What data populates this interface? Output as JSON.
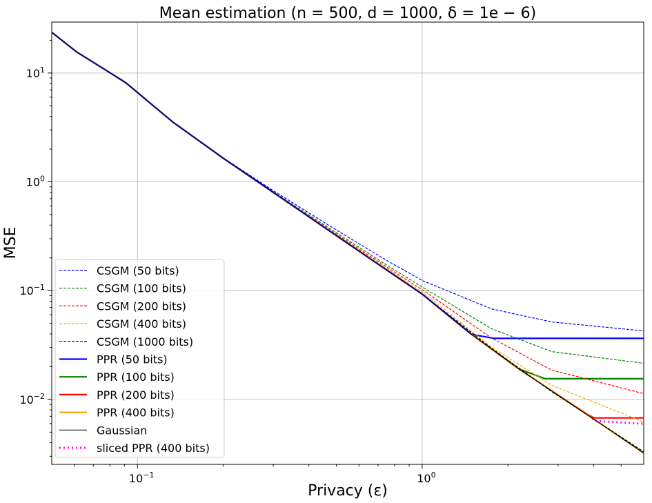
{
  "chart_data": {
    "type": "line",
    "title": "Mean estimation (n = 500, d = 1000, δ = 1e − 6)",
    "xlabel": "Privacy (ε)",
    "ylabel": "MSE",
    "xscale": "log",
    "yscale": "log",
    "xlim": [
      0.05,
      6
    ],
    "ylim": [
      0.00253,
      29.4
    ],
    "grid": true,
    "legend_position": "lower-left",
    "xticks": [
      {
        "value": 0.1,
        "label": "10",
        "exp": "−1"
      },
      {
        "value": 1,
        "label": "10",
        "exp": "0"
      }
    ],
    "yticks": [
      {
        "value": 10,
        "label": "10",
        "exp": "1"
      },
      {
        "value": 1,
        "label": "10",
        "exp": "0"
      },
      {
        "value": 0.1,
        "label": "10",
        "exp": "−1"
      },
      {
        "value": 0.01,
        "label": "10",
        "exp": "−2"
      }
    ],
    "series": [
      {
        "name": "CSGM (50 bits)",
        "color": "#0000ff",
        "style": "dashed",
        "x": [
          0.05,
          0.061,
          0.075,
          0.091,
          0.133,
          0.2,
          0.3,
          0.5,
          0.75,
          1,
          1.75,
          2.85,
          6
        ],
        "y": [
          23.7,
          15.7,
          11.2,
          8.15,
          3.55,
          1.66,
          0.83,
          0.36,
          0.19,
          0.124,
          0.068,
          0.0515,
          0.0426
        ]
      },
      {
        "name": "CSGM (100 bits)",
        "color": "#008000",
        "style": "dashed",
        "x": [
          0.05,
          0.061,
          0.075,
          0.091,
          0.133,
          0.2,
          0.3,
          0.5,
          0.75,
          1,
          1.75,
          2.85,
          6
        ],
        "y": [
          23.7,
          15.7,
          11.2,
          8.15,
          3.55,
          1.65,
          0.81,
          0.34,
          0.172,
          0.108,
          0.0447,
          0.0275,
          0.0215
        ]
      },
      {
        "name": "CSGM (200 bits)",
        "color": "#ff0000",
        "style": "dashed",
        "x": [
          0.05,
          0.061,
          0.075,
          0.091,
          0.133,
          0.2,
          0.3,
          0.5,
          0.75,
          1,
          1.75,
          2.85,
          6
        ],
        "y": [
          23.7,
          15.7,
          11.2,
          8.15,
          3.55,
          1.65,
          0.8,
          0.33,
          0.165,
          0.102,
          0.0368,
          0.0186,
          0.0113
        ]
      },
      {
        "name": "CSGM (400 bits)",
        "color": "#ffa500",
        "style": "dashed",
        "x": [
          0.05,
          0.061,
          0.075,
          0.091,
          0.133,
          0.2,
          0.3,
          0.5,
          0.75,
          1,
          1.75,
          2.85,
          6
        ],
        "y": [
          23.7,
          15.7,
          11.2,
          8.15,
          3.55,
          1.65,
          0.8,
          0.325,
          0.16,
          0.097,
          0.0303,
          0.0135,
          0.0062
        ]
      },
      {
        "name": "CSGM (1000 bits)",
        "color": "#000000",
        "style": "dashed",
        "x": [
          0.05,
          0.061,
          0.075,
          0.091,
          0.133,
          0.2,
          0.3,
          0.5,
          0.75,
          1,
          1.75,
          2.85,
          6
        ],
        "y": [
          23.7,
          15.7,
          11.2,
          8.15,
          3.55,
          1.65,
          0.8,
          0.32,
          0.155,
          0.093,
          0.0296,
          0.0118,
          0.0033
        ]
      },
      {
        "name": "PPR (50 bits)",
        "color": "#0000ff",
        "style": "solid",
        "x": [
          0.05,
          0.061,
          0.075,
          0.091,
          0.133,
          0.2,
          0.3,
          0.5,
          0.75,
          1,
          1.49,
          1.79,
          6
        ],
        "y": [
          23.7,
          15.7,
          11.2,
          8.15,
          3.55,
          1.65,
          0.8,
          0.32,
          0.155,
          0.093,
          0.0396,
          0.0364,
          0.0364
        ]
      },
      {
        "name": "PPR (100 bits)",
        "color": "#008000",
        "style": "solid",
        "x": [
          0.05,
          0.061,
          0.075,
          0.091,
          0.133,
          0.2,
          0.3,
          0.5,
          0.75,
          1,
          1.49,
          2.19,
          2.7,
          6
        ],
        "y": [
          23.7,
          15.7,
          11.2,
          8.15,
          3.55,
          1.65,
          0.8,
          0.32,
          0.155,
          0.093,
          0.0396,
          0.019,
          0.0155,
          0.0155
        ]
      },
      {
        "name": "PPR (200 bits)",
        "color": "#ff0000",
        "style": "solid",
        "x": [
          0.05,
          0.061,
          0.075,
          0.091,
          0.133,
          0.2,
          0.3,
          0.5,
          0.75,
          1,
          1.49,
          2.19,
          3.83,
          4.02,
          6
        ],
        "y": [
          23.7,
          15.7,
          11.2,
          8.15,
          3.55,
          1.65,
          0.8,
          0.32,
          0.155,
          0.093,
          0.0396,
          0.019,
          0.0072,
          0.00676,
          0.00676
        ]
      },
      {
        "name": "PPR (400 bits)",
        "color": "#ffa500",
        "style": "solid",
        "x": [
          0.05,
          0.061,
          0.075,
          0.091,
          0.133,
          0.2,
          0.3,
          0.5,
          0.75,
          1,
          1.49,
          2.19,
          3.98,
          6
        ],
        "y": [
          23.7,
          15.7,
          11.2,
          8.15,
          3.55,
          1.65,
          0.8,
          0.32,
          0.155,
          0.093,
          0.0396,
          0.019,
          0.00667,
          0.00321
        ]
      },
      {
        "name": "Gaussian",
        "color": "#000000",
        "style": "thin",
        "x": [
          0.05,
          0.061,
          0.075,
          0.091,
          0.133,
          0.2,
          0.3,
          0.5,
          0.75,
          1,
          1.49,
          2.19,
          3.98,
          6
        ],
        "y": [
          23.7,
          15.7,
          11.2,
          8.15,
          3.55,
          1.65,
          0.8,
          0.32,
          0.155,
          0.093,
          0.0396,
          0.019,
          0.00667,
          0.00321
        ]
      },
      {
        "name": "sliced PPR (400 bits)",
        "color": "#ff00ff",
        "style": "dotted",
        "x": [
          3.98,
          4.02,
          6
        ],
        "y": [
          0.00667,
          0.00635,
          0.00597
        ]
      }
    ]
  }
}
